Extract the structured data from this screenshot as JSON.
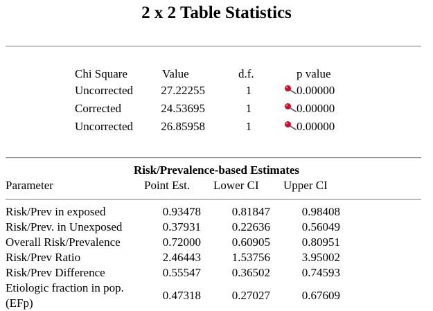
{
  "title": "2 x 2 Table Statistics",
  "icons": {
    "pvalue_marker": "pushpin-icon"
  },
  "colors": {
    "pin_head": "#c8102e",
    "pin_needle": "#707070"
  },
  "chi_square": {
    "headers": {
      "name": "Chi Square",
      "value": "Value",
      "df": "d.f.",
      "p": "p value"
    },
    "rows": [
      {
        "name": "Uncorrected",
        "value": "27.22255",
        "df": "1",
        "p": "0.00000"
      },
      {
        "name": "Corrected",
        "value": "24.53695",
        "df": "1",
        "p": "0.00000"
      },
      {
        "name": "Uncorrected",
        "value": "26.85958",
        "df": "1",
        "p": "0.00000"
      }
    ]
  },
  "estimates": {
    "title": "Risk/Prevalence-based Estimates",
    "headers": {
      "parameter": "Parameter",
      "point": "Point Est.",
      "lower": "Lower CI",
      "upper": "Upper CI"
    },
    "rows": [
      {
        "parameter": "Risk/Prev in exposed",
        "point": "0.93478",
        "lower": "0.81847",
        "upper": "0.98408"
      },
      {
        "parameter": "Risk/Prev. in Unexposed",
        "point": "0.37931",
        "lower": "0.22636",
        "upper": "0.56049"
      },
      {
        "parameter": "Overall Risk/Prevalence",
        "point": "0.72000",
        "lower": "0.60905",
        "upper": "0.80951"
      },
      {
        "parameter": "Risk/Prev Ratio",
        "point": "2.46443",
        "lower": "1.53756",
        "upper": "3.95002"
      },
      {
        "parameter": "Risk/Prev Difference",
        "point": "0.55547",
        "lower": "0.36502",
        "upper": "0.74593"
      },
      {
        "parameter_line1": "Etiologic fraction in pop.",
        "parameter_line2": "(EFp)",
        "point": "0.47318",
        "lower": "0.27027",
        "upper": "0.67609"
      }
    ]
  }
}
